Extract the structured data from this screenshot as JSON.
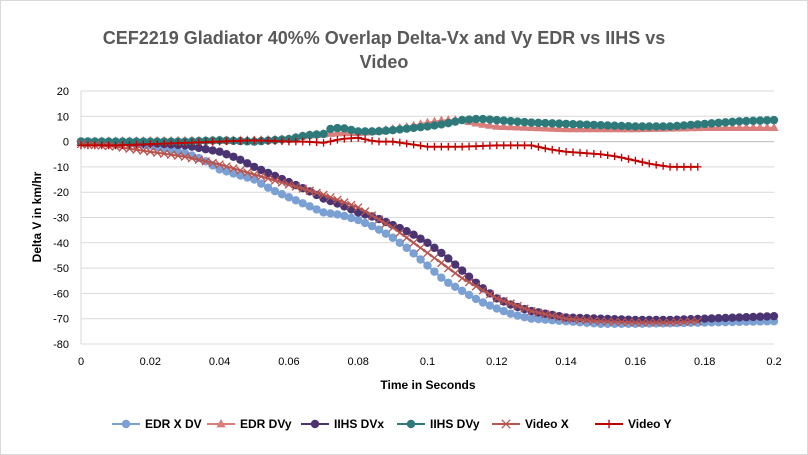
{
  "chart_data": {
    "type": "scatter",
    "title_line1": "CEF2219 Gladiator 40%% Overlap Delta-Vx and Vy EDR vs IIHS   vs",
    "title_line2": "Video",
    "xlabel": "Time in Seconds",
    "ylabel": "Delta V in km/hr",
    "xlim": [
      0,
      0.2
    ],
    "ylim": [
      -80,
      20
    ],
    "xticks": [
      0,
      0.02,
      0.04,
      0.06,
      0.08,
      0.1,
      0.12,
      0.14,
      0.16,
      0.18,
      0.2
    ],
    "xtick_labels": [
      "0",
      "0.02",
      "0.04",
      "0.06",
      "0.08",
      "0.1",
      "0.12",
      "0.14",
      "0.16",
      "0.18",
      "0.2"
    ],
    "yticks": [
      20,
      10,
      0,
      -10,
      -20,
      -30,
      -40,
      -50,
      -60,
      -70,
      -80
    ],
    "ytick_labels": [
      "20",
      "10",
      "0",
      "-10",
      "-20",
      "-30",
      "-40",
      "-50",
      "-60",
      "-70",
      "-80"
    ],
    "grid": "horizontal",
    "legend_position": "bottom",
    "series": [
      {
        "name": "EDR X DV",
        "color": "#7ba0d4",
        "marker": "circle",
        "step": 0.002,
        "x_end": 0.2,
        "points": [
          [
            0,
            0
          ],
          [
            0.01,
            -0.3
          ],
          [
            0.02,
            -1.5
          ],
          [
            0.03,
            -4.5
          ],
          [
            0.035,
            -7
          ],
          [
            0.04,
            -11
          ],
          [
            0.045,
            -13
          ],
          [
            0.05,
            -15
          ],
          [
            0.055,
            -19
          ],
          [
            0.06,
            -22
          ],
          [
            0.065,
            -25
          ],
          [
            0.07,
            -28
          ],
          [
            0.075,
            -29
          ],
          [
            0.08,
            -31
          ],
          [
            0.085,
            -34
          ],
          [
            0.09,
            -38
          ],
          [
            0.095,
            -43
          ],
          [
            0.1,
            -49
          ],
          [
            0.105,
            -55
          ],
          [
            0.11,
            -59
          ],
          [
            0.115,
            -63
          ],
          [
            0.12,
            -66
          ],
          [
            0.125,
            -68.5
          ],
          [
            0.13,
            -70
          ],
          [
            0.14,
            -71
          ],
          [
            0.15,
            -72
          ],
          [
            0.16,
            -72
          ],
          [
            0.17,
            -71.8
          ],
          [
            0.18,
            -71.5
          ],
          [
            0.2,
            -71
          ]
        ]
      },
      {
        "name": "EDR DVy",
        "color": "#d97e7b",
        "marker": "triangle",
        "step": 0.002,
        "x_end": 0.2,
        "points": [
          [
            0,
            0
          ],
          [
            0.04,
            0.5
          ],
          [
            0.05,
            0.5
          ],
          [
            0.06,
            1
          ],
          [
            0.065,
            2.5
          ],
          [
            0.07,
            3
          ],
          [
            0.075,
            3.5
          ],
          [
            0.08,
            3.5
          ],
          [
            0.085,
            4
          ],
          [
            0.09,
            5
          ],
          [
            0.095,
            6
          ],
          [
            0.1,
            7.5
          ],
          [
            0.105,
            8.5
          ],
          [
            0.11,
            8.5
          ],
          [
            0.115,
            7
          ],
          [
            0.12,
            6
          ],
          [
            0.13,
            5.5
          ],
          [
            0.14,
            5
          ],
          [
            0.16,
            5
          ],
          [
            0.18,
            5.5
          ],
          [
            0.2,
            5.5
          ]
        ]
      },
      {
        "name": "IIHS DVx",
        "color": "#4b3472",
        "marker": "circle",
        "step": 0.002,
        "x_end": 0.2,
        "points": [
          [
            0,
            0
          ],
          [
            0.02,
            -0.5
          ],
          [
            0.03,
            -1.5
          ],
          [
            0.04,
            -4
          ],
          [
            0.045,
            -6.5
          ],
          [
            0.05,
            -10
          ],
          [
            0.055,
            -13
          ],
          [
            0.06,
            -16
          ],
          [
            0.065,
            -19
          ],
          [
            0.07,
            -22.5
          ],
          [
            0.075,
            -25
          ],
          [
            0.08,
            -28
          ],
          [
            0.085,
            -30
          ],
          [
            0.09,
            -33
          ],
          [
            0.095,
            -36
          ],
          [
            0.1,
            -40
          ],
          [
            0.105,
            -45
          ],
          [
            0.11,
            -51
          ],
          [
            0.115,
            -57
          ],
          [
            0.12,
            -62
          ],
          [
            0.125,
            -65
          ],
          [
            0.13,
            -67
          ],
          [
            0.14,
            -69.5
          ],
          [
            0.15,
            -70
          ],
          [
            0.16,
            -70.5
          ],
          [
            0.17,
            -70.5
          ],
          [
            0.18,
            -70
          ],
          [
            0.19,
            -69.5
          ],
          [
            0.2,
            -69
          ]
        ]
      },
      {
        "name": "IIHS DVy",
        "color": "#2e7a7a",
        "marker": "circle",
        "step": 0.002,
        "x_end": 0.2,
        "points": [
          [
            0,
            0
          ],
          [
            0.02,
            0
          ],
          [
            0.03,
            0
          ],
          [
            0.04,
            0.5
          ],
          [
            0.05,
            0
          ],
          [
            0.06,
            1
          ],
          [
            0.065,
            2.5
          ],
          [
            0.07,
            3
          ],
          [
            0.072,
            5
          ],
          [
            0.075,
            5.5
          ],
          [
            0.08,
            4
          ],
          [
            0.085,
            4
          ],
          [
            0.09,
            4.5
          ],
          [
            0.1,
            6
          ],
          [
            0.105,
            7
          ],
          [
            0.11,
            8.5
          ],
          [
            0.115,
            9
          ],
          [
            0.12,
            8.5
          ],
          [
            0.13,
            7.5
          ],
          [
            0.14,
            7
          ],
          [
            0.15,
            6.5
          ],
          [
            0.16,
            6
          ],
          [
            0.17,
            6
          ],
          [
            0.18,
            7
          ],
          [
            0.19,
            8
          ],
          [
            0.2,
            8.5
          ]
        ]
      },
      {
        "name": "Video  X",
        "color": "#b85450",
        "marker": "x",
        "step": 0.002,
        "x_end": 0.178,
        "points": [
          [
            0,
            -1
          ],
          [
            0.01,
            -2
          ],
          [
            0.02,
            -4
          ],
          [
            0.03,
            -6
          ],
          [
            0.04,
            -9
          ],
          [
            0.05,
            -13
          ],
          [
            0.06,
            -17
          ],
          [
            0.07,
            -21
          ],
          [
            0.08,
            -26
          ],
          [
            0.09,
            -34
          ],
          [
            0.1,
            -44
          ],
          [
            0.11,
            -54
          ],
          [
            0.12,
            -62
          ],
          [
            0.13,
            -67
          ],
          [
            0.14,
            -70
          ],
          [
            0.15,
            -71
          ],
          [
            0.16,
            -71.5
          ],
          [
            0.17,
            -71.5
          ],
          [
            0.178,
            -71
          ]
        ]
      },
      {
        "name": "Video  Y",
        "color": "#c00000",
        "marker": "plus",
        "step": 0.002,
        "x_end": 0.178,
        "points": [
          [
            0,
            -1.5
          ],
          [
            0.01,
            -1.5
          ],
          [
            0.02,
            -1
          ],
          [
            0.04,
            0
          ],
          [
            0.05,
            0.5
          ],
          [
            0.06,
            0
          ],
          [
            0.065,
            0
          ],
          [
            0.07,
            -0.5
          ],
          [
            0.075,
            1
          ],
          [
            0.08,
            1.5
          ],
          [
            0.085,
            0
          ],
          [
            0.09,
            0
          ],
          [
            0.1,
            -2
          ],
          [
            0.11,
            -2
          ],
          [
            0.12,
            -1.5
          ],
          [
            0.13,
            -1.5
          ],
          [
            0.135,
            -3
          ],
          [
            0.14,
            -4
          ],
          [
            0.15,
            -5
          ],
          [
            0.155,
            -6
          ],
          [
            0.16,
            -7.5
          ],
          [
            0.165,
            -9
          ],
          [
            0.17,
            -10
          ],
          [
            0.178,
            -10
          ]
        ]
      }
    ]
  }
}
